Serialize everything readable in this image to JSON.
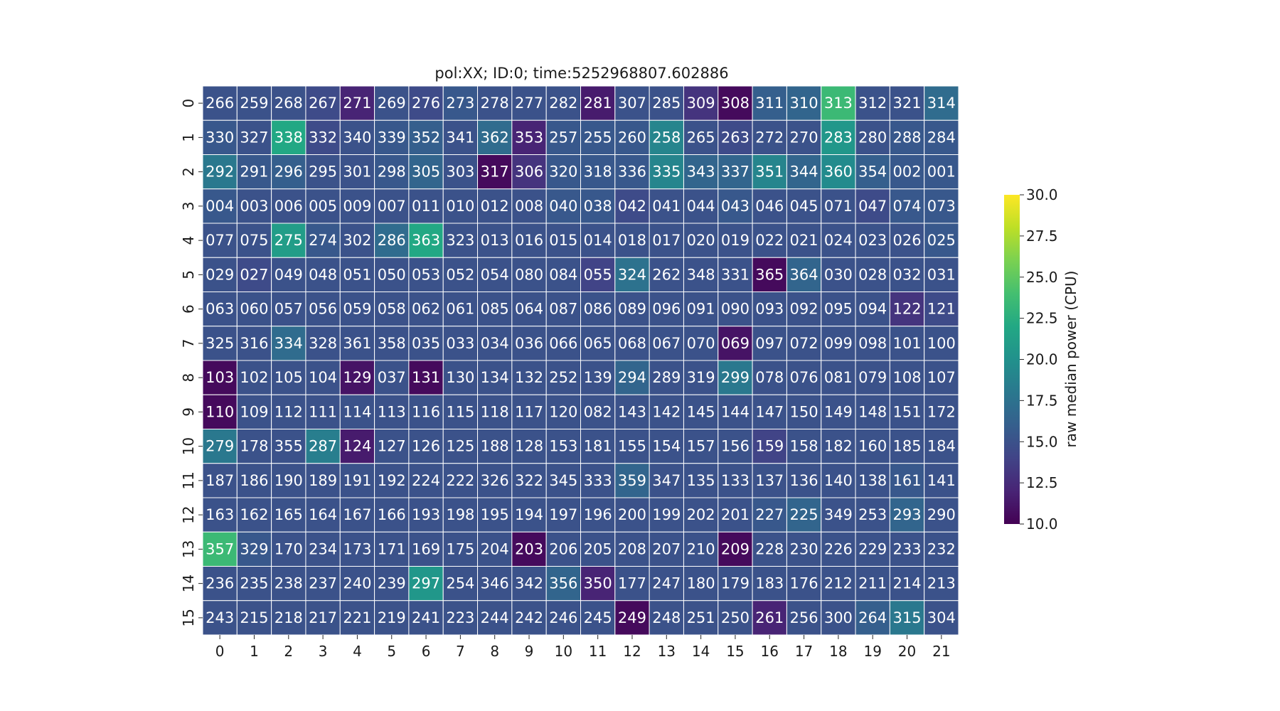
{
  "chart_data": {
    "type": "heatmap",
    "title": "pol:XX; ID:0; time:5252968807.602886",
    "xlabel": "",
    "ylabel": "",
    "x_ticks": [
      "0",
      "1",
      "2",
      "3",
      "4",
      "5",
      "6",
      "7",
      "8",
      "9",
      "10",
      "11",
      "12",
      "13",
      "14",
      "15",
      "16",
      "17",
      "18",
      "19",
      "20",
      "21"
    ],
    "y_ticks": [
      "0",
      "1",
      "2",
      "3",
      "4",
      "5",
      "6",
      "7",
      "8",
      "9",
      "10",
      "11",
      "12",
      "13",
      "14",
      "15"
    ],
    "colormap": "viridis",
    "colorbar": {
      "label": "raw median power (CPU)",
      "range": [
        10.0,
        30.0
      ],
      "ticks": [
        "10.0",
        "12.5",
        "15.0",
        "17.5",
        "20.0",
        "22.5",
        "25.0",
        "27.5",
        "30.0"
      ]
    },
    "annotations": [
      [
        "266",
        "259",
        "268",
        "267",
        "271",
        "269",
        "276",
        "273",
        "278",
        "277",
        "282",
        "281",
        "307",
        "285",
        "309",
        "308",
        "311",
        "310",
        "313",
        "312",
        "321",
        "314"
      ],
      [
        "330",
        "327",
        "338",
        "332",
        "340",
        "339",
        "352",
        "341",
        "362",
        "353",
        "257",
        "255",
        "260",
        "258",
        "265",
        "263",
        "272",
        "270",
        "283",
        "280",
        "288",
        "284"
      ],
      [
        "292",
        "291",
        "296",
        "295",
        "301",
        "298",
        "305",
        "303",
        "317",
        "306",
        "320",
        "318",
        "336",
        "335",
        "343",
        "337",
        "351",
        "344",
        "360",
        "354",
        "002",
        "001"
      ],
      [
        "004",
        "003",
        "006",
        "005",
        "009",
        "007",
        "011",
        "010",
        "012",
        "008",
        "040",
        "038",
        "042",
        "041",
        "044",
        "043",
        "046",
        "045",
        "071",
        "047",
        "074",
        "073"
      ],
      [
        "077",
        "075",
        "275",
        "274",
        "302",
        "286",
        "363",
        "323",
        "013",
        "016",
        "015",
        "014",
        "018",
        "017",
        "020",
        "019",
        "022",
        "021",
        "024",
        "023",
        "026",
        "025"
      ],
      [
        "029",
        "027",
        "049",
        "048",
        "051",
        "050",
        "053",
        "052",
        "054",
        "080",
        "084",
        "055",
        "324",
        "262",
        "348",
        "331",
        "365",
        "364",
        "030",
        "028",
        "032",
        "031"
      ],
      [
        "063",
        "060",
        "057",
        "056",
        "059",
        "058",
        "062",
        "061",
        "085",
        "064",
        "087",
        "086",
        "089",
        "096",
        "091",
        "090",
        "093",
        "092",
        "095",
        "094",
        "122",
        "121"
      ],
      [
        "325",
        "316",
        "334",
        "328",
        "361",
        "358",
        "035",
        "033",
        "034",
        "036",
        "066",
        "065",
        "068",
        "067",
        "070",
        "069",
        "097",
        "072",
        "099",
        "098",
        "101",
        "100"
      ],
      [
        "103",
        "102",
        "105",
        "104",
        "129",
        "037",
        "131",
        "130",
        "134",
        "132",
        "252",
        "139",
        "294",
        "289",
        "319",
        "299",
        "078",
        "076",
        "081",
        "079",
        "108",
        "107"
      ],
      [
        "110",
        "109",
        "112",
        "111",
        "114",
        "113",
        "116",
        "115",
        "118",
        "117",
        "120",
        "082",
        "143",
        "142",
        "145",
        "144",
        "147",
        "150",
        "149",
        "148",
        "151",
        "172"
      ],
      [
        "279",
        "178",
        "355",
        "287",
        "124",
        "127",
        "126",
        "125",
        "188",
        "128",
        "153",
        "181",
        "155",
        "154",
        "157",
        "156",
        "159",
        "158",
        "182",
        "160",
        "185",
        "184"
      ],
      [
        "187",
        "186",
        "190",
        "189",
        "191",
        "192",
        "224",
        "222",
        "326",
        "322",
        "345",
        "333",
        "359",
        "347",
        "135",
        "133",
        "137",
        "136",
        "140",
        "138",
        "161",
        "141"
      ],
      [
        "163",
        "162",
        "165",
        "164",
        "167",
        "166",
        "193",
        "198",
        "195",
        "194",
        "197",
        "196",
        "200",
        "199",
        "202",
        "201",
        "227",
        "225",
        "349",
        "253",
        "293",
        "290"
      ],
      [
        "357",
        "329",
        "170",
        "234",
        "173",
        "171",
        "169",
        "175",
        "204",
        "203",
        "206",
        "205",
        "208",
        "207",
        "210",
        "209",
        "228",
        "230",
        "226",
        "229",
        "233",
        "232"
      ],
      [
        "236",
        "235",
        "238",
        "237",
        "240",
        "239",
        "297",
        "254",
        "346",
        "342",
        "356",
        "350",
        "177",
        "247",
        "180",
        "179",
        "183",
        "176",
        "212",
        "211",
        "214",
        "213"
      ],
      [
        "243",
        "215",
        "218",
        "217",
        "221",
        "219",
        "241",
        "223",
        "244",
        "242",
        "246",
        "245",
        "249",
        "248",
        "251",
        "250",
        "261",
        "256",
        "300",
        "264",
        "315",
        "304"
      ]
    ],
    "values": [
      [
        15.0,
        15.0,
        15.0,
        14.5,
        12.0,
        15.0,
        14.5,
        15.5,
        15.0,
        15.0,
        15.0,
        11.5,
        15.0,
        15.0,
        13.0,
        10.5,
        16.0,
        16.5,
        23.5,
        15.0,
        15.0,
        17.0
      ],
      [
        15.5,
        15.0,
        22.0,
        14.5,
        15.0,
        15.5,
        16.0,
        15.0,
        17.0,
        12.0,
        15.5,
        15.5,
        15.5,
        19.0,
        15.0,
        14.5,
        15.0,
        15.0,
        20.5,
        15.0,
        15.5,
        15.5
      ],
      [
        18.0,
        15.5,
        16.0,
        15.0,
        15.0,
        15.5,
        16.5,
        15.0,
        10.5,
        13.0,
        15.5,
        15.5,
        15.5,
        19.0,
        16.5,
        16.5,
        19.0,
        16.5,
        19.5,
        16.0,
        15.5,
        15.5
      ],
      [
        15.5,
        15.0,
        15.0,
        15.0,
        15.0,
        15.0,
        15.0,
        15.0,
        15.0,
        15.0,
        15.5,
        15.5,
        14.5,
        15.0,
        15.0,
        15.5,
        15.0,
        15.0,
        15.0,
        14.5,
        15.5,
        15.5
      ],
      [
        15.0,
        15.0,
        21.0,
        15.5,
        15.0,
        17.0,
        22.0,
        15.0,
        15.0,
        15.0,
        15.0,
        15.0,
        15.0,
        15.0,
        15.0,
        15.0,
        15.0,
        15.0,
        15.0,
        15.0,
        15.0,
        15.5
      ],
      [
        15.0,
        14.5,
        15.0,
        15.0,
        15.0,
        15.0,
        15.0,
        15.0,
        15.0,
        15.0,
        15.0,
        14.0,
        17.5,
        15.0,
        15.0,
        15.0,
        10.5,
        16.5,
        15.0,
        15.0,
        15.0,
        15.0
      ],
      [
        15.0,
        15.0,
        15.0,
        15.0,
        15.0,
        15.0,
        15.0,
        15.0,
        15.0,
        15.0,
        15.0,
        15.0,
        15.0,
        15.0,
        15.0,
        15.0,
        15.0,
        15.0,
        15.0,
        15.0,
        13.0,
        14.5
      ],
      [
        15.0,
        15.0,
        17.0,
        15.0,
        15.0,
        15.0,
        15.0,
        15.0,
        15.0,
        15.0,
        15.0,
        15.0,
        15.0,
        15.0,
        15.0,
        11.0,
        15.0,
        15.0,
        15.0,
        15.0,
        15.0,
        15.0
      ],
      [
        10.5,
        15.0,
        15.0,
        15.0,
        11.0,
        15.0,
        10.5,
        15.0,
        15.0,
        15.0,
        15.0,
        15.0,
        16.5,
        15.0,
        15.0,
        18.0,
        15.0,
        15.0,
        15.0,
        15.0,
        15.0,
        15.0
      ],
      [
        10.5,
        15.0,
        15.0,
        15.0,
        15.0,
        15.0,
        15.0,
        15.0,
        15.0,
        15.0,
        15.0,
        15.0,
        15.0,
        15.0,
        15.0,
        15.0,
        15.0,
        15.0,
        15.0,
        15.0,
        15.0,
        15.0
      ],
      [
        18.0,
        15.0,
        15.0,
        18.5,
        11.5,
        15.0,
        15.0,
        15.0,
        15.0,
        15.0,
        15.0,
        15.0,
        15.0,
        15.0,
        15.0,
        15.0,
        14.0,
        15.0,
        15.0,
        15.0,
        15.0,
        15.0
      ],
      [
        15.0,
        15.0,
        15.0,
        15.0,
        15.0,
        15.0,
        15.0,
        15.0,
        15.0,
        15.0,
        15.0,
        15.0,
        16.5,
        15.0,
        15.0,
        15.0,
        15.0,
        15.0,
        15.0,
        15.0,
        15.5,
        15.0
      ],
      [
        15.0,
        15.0,
        15.0,
        15.0,
        15.0,
        15.0,
        15.0,
        15.0,
        15.0,
        15.0,
        15.0,
        15.0,
        15.0,
        15.0,
        15.0,
        15.0,
        15.5,
        16.5,
        15.0,
        15.0,
        16.5,
        15.0
      ],
      [
        23.5,
        15.5,
        15.0,
        15.0,
        15.0,
        15.0,
        15.0,
        15.0,
        15.0,
        10.5,
        15.0,
        15.0,
        15.0,
        15.0,
        15.0,
        10.5,
        15.0,
        15.0,
        15.0,
        15.0,
        15.0,
        15.0
      ],
      [
        15.0,
        15.0,
        15.0,
        15.0,
        15.0,
        15.0,
        20.5,
        15.0,
        15.0,
        15.0,
        16.5,
        12.0,
        15.0,
        15.0,
        15.0,
        15.0,
        15.0,
        15.0,
        15.0,
        15.0,
        15.0,
        15.0
      ],
      [
        15.0,
        15.0,
        15.0,
        15.0,
        15.0,
        15.0,
        15.0,
        15.0,
        15.0,
        15.0,
        15.0,
        15.0,
        10.5,
        15.0,
        15.0,
        15.0,
        12.0,
        15.0,
        15.0,
        16.0,
        18.0,
        15.0
      ]
    ]
  }
}
